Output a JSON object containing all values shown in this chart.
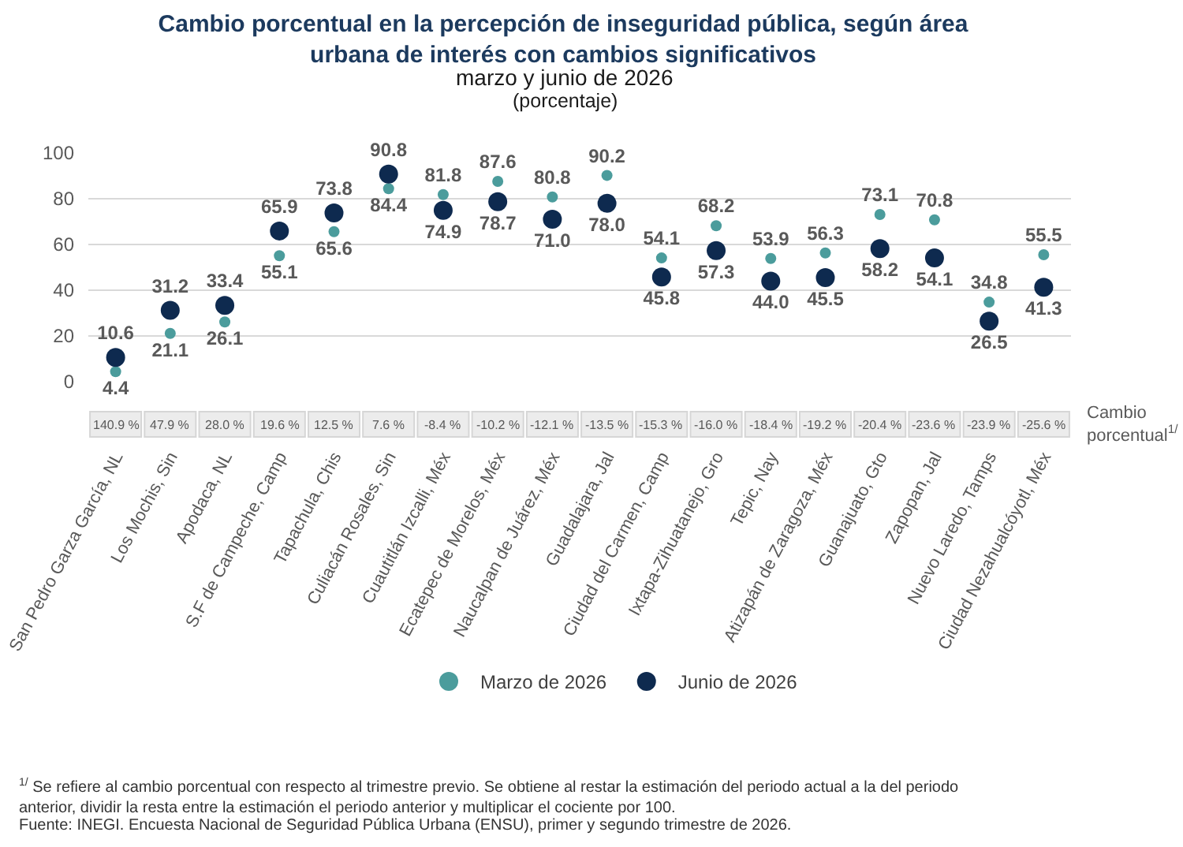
{
  "chart_data": {
    "type": "scatter",
    "title": "Cambio porcentual en la percepción de inseguridad pública, según área urbana de interés con cambios significativos",
    "subtitle": "marzo y junio de 2026\n(porcentaje)",
    "categories": [
      "San Pedro Garza García, NL",
      "Los Mochis, Sin",
      "Apodaca, NL",
      "S.F de Campeche, Camp",
      "Tapachula, Chis",
      "Culiacán Rosales, Sin",
      "Cuautitlán Izcalli, Méx",
      "Ecatepec de Morelos, Méx",
      "Naucalpan de Juárez, Méx",
      "Guadalajara, Jal",
      "Ciudad del Carmen, Camp",
      "Ixtapa-Zihuatanejo, Gro",
      "Tepic, Nay",
      "Atizapán de Zaragoza, Méx",
      "Guanajuato, Gto",
      "Zapopan, Jal",
      "Nuevo Laredo, Tamps",
      "Ciudad Nezahualcóyotl, Méx"
    ],
    "series": [
      {
        "name": "Marzo de 2026",
        "color": "#4b9c9c",
        "values": [
          4.4,
          21.1,
          26.1,
          55.1,
          65.6,
          84.4,
          81.8,
          87.6,
          80.8,
          90.2,
          54.1,
          68.2,
          53.9,
          56.3,
          73.1,
          70.8,
          34.8,
          55.5
        ],
        "value_labels": [
          "4.4",
          "21.1",
          "26.1",
          "55.1",
          "65.6",
          "84.4",
          "81.8",
          "87.6",
          "80.8",
          "90.2",
          "54.1",
          "68.2",
          "53.9",
          "56.3",
          "73.1",
          "70.8",
          "34.8",
          "55.5"
        ]
      },
      {
        "name": "Junio de 2026",
        "color": "#0e2a4f",
        "values": [
          10.6,
          31.2,
          33.4,
          65.9,
          73.8,
          90.8,
          74.9,
          78.7,
          71.0,
          78.0,
          45.8,
          57.3,
          44.0,
          45.5,
          58.2,
          54.1,
          26.5,
          41.3
        ],
        "value_labels": [
          "10.6",
          "31.2",
          "33.4",
          "65.9",
          "73.8",
          "90.8",
          "74.9",
          "78.7",
          "71.0",
          "78.0",
          "45.8",
          "57.3",
          "44.0",
          "45.5",
          "58.2",
          "54.1",
          "26.5",
          "41.3"
        ]
      }
    ],
    "ylim": [
      0,
      100
    ],
    "yticks": [
      0,
      20,
      40,
      60,
      80,
      100
    ],
    "grid": "y",
    "legend": "bottom",
    "marker": "circle",
    "annotations": [
      "140.9 %",
      "47.9 %",
      "28.0 %",
      "19.6 %",
      "12.5 %",
      "7.6 %",
      "-8.4 %",
      "-10.2 %",
      "-12.1 %",
      "-13.5 %",
      "-15.3 %",
      "-16.0 %",
      "-18.4 %",
      "-19.2 %",
      "-20.4 %",
      "-23.6 %",
      "-23.9 %",
      "-25.6 %",
      "Cambio porcentual$^{1/}$",
      "$^{1/}$ Se refiere al cambio porcentual con respecto al trimestre previo. Se obtiene al restar la estimación del periodo actual a la del periodo anterior, dividir la resta entre la estimación el periodo anterior y multiplicar el cociente por 100.",
      "Fuente: INEGI. Encuesta Nacional de Seguridad Pública Urbana (ENSU), primer y segundo trimestre de 2026."
    ]
  }
}
